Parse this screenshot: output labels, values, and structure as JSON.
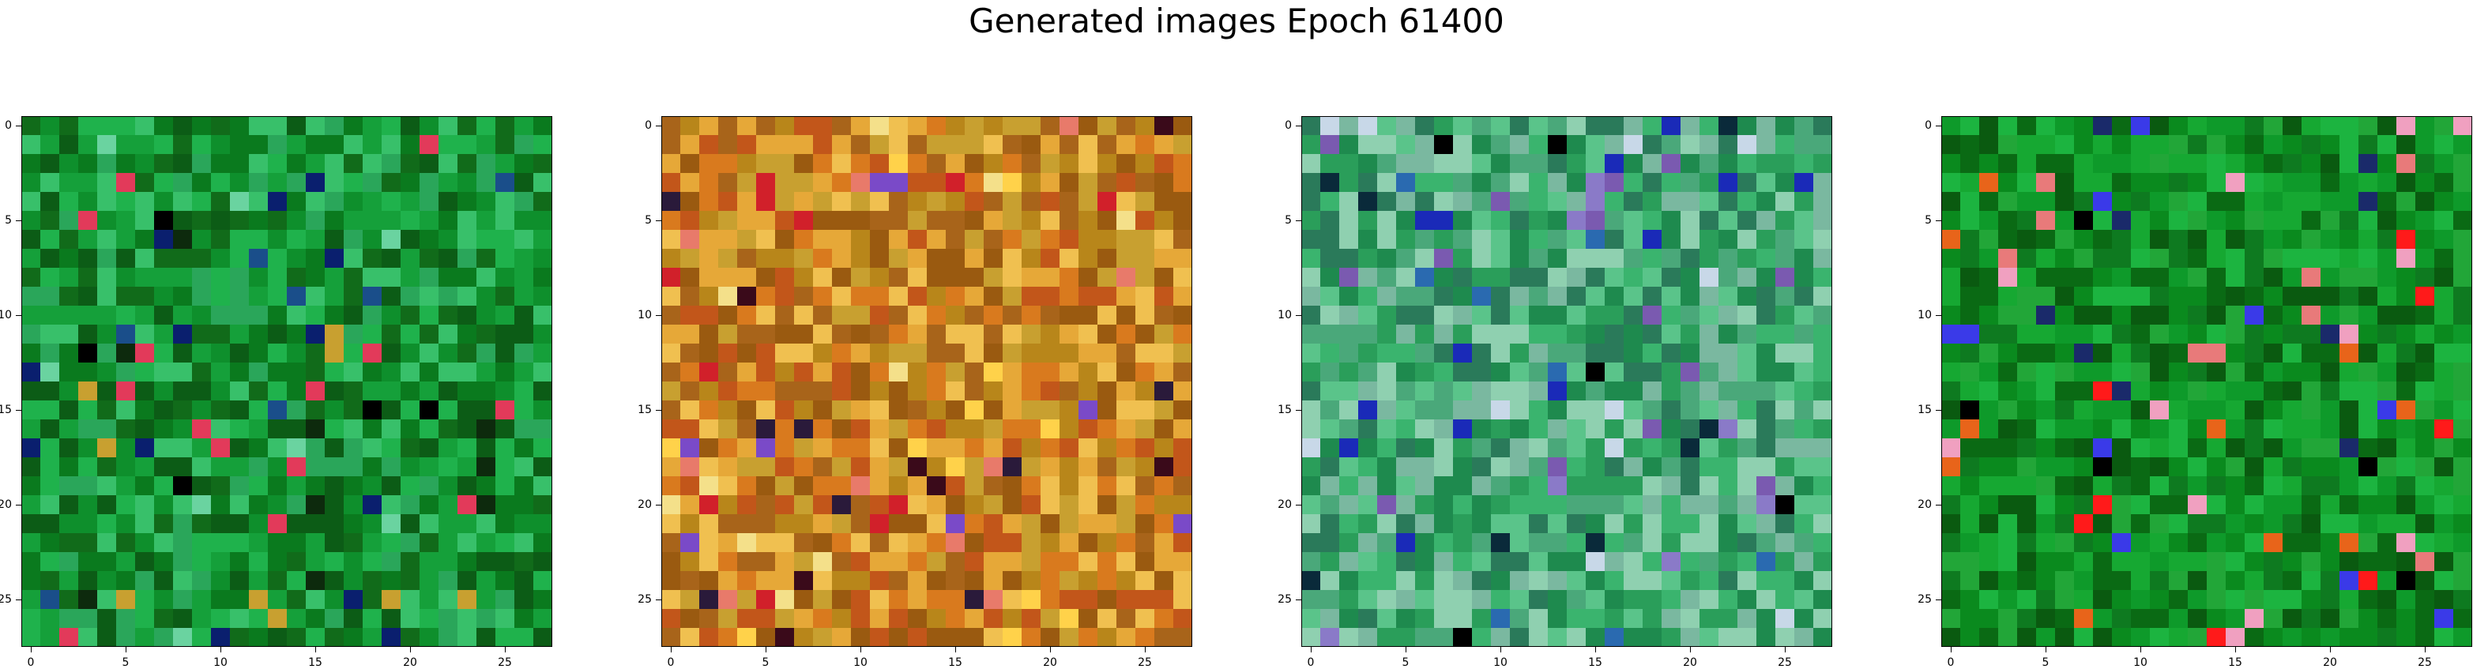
{
  "title": "Generated images Epoch 61400",
  "x_tick_labels": [
    "0",
    "5",
    "10",
    "15",
    "20",
    "25"
  ],
  "y_tick_labels": [
    "0",
    "5",
    "10",
    "15",
    "20",
    "25"
  ],
  "grid_size": 28,
  "panels": [
    {
      "name": "generated-image-1",
      "palette": "green",
      "base_colors": [
        "#0a7a1e",
        "#0e8f2c",
        "#116b1a",
        "#15a03a",
        "#1fb24c",
        "#0c5c16",
        "#2aa65a",
        "#38c06a"
      ],
      "accent_colors": [
        "#000000",
        "#0a1f6e",
        "#6ad3a0",
        "#e23a5a",
        "#c8a030",
        "#1a4e8a",
        "#0d2a0d"
      ]
    },
    {
      "name": "generated-image-2",
      "palette": "warm",
      "base_colors": [
        "#c2561a",
        "#d97a1e",
        "#b8861a",
        "#e6a838",
        "#a8641a",
        "#f0c050",
        "#c8a030",
        "#9a5a10"
      ],
      "accent_colors": [
        "#d1202a",
        "#3a0a1a",
        "#ffd24a",
        "#7a4ac8",
        "#e87a6a",
        "#2a1a3a",
        "#f4e08a"
      ]
    },
    {
      "name": "generated-image-3",
      "palette": "teal",
      "base_colors": [
        "#2a9e5a",
        "#3ab46e",
        "#1e8a4e",
        "#5ac48a",
        "#7ab8a0",
        "#8fd0b0",
        "#2a7a5a",
        "#4aa87a"
      ],
      "accent_colors": [
        "#1a2ab8",
        "#000000",
        "#7a5ab0",
        "#c8d8e8",
        "#2a6ab0",
        "#8a7ac8",
        "#0a2a3a"
      ]
    },
    {
      "name": "generated-image-4",
      "palette": "green",
      "base_colors": [
        "#0a8a1e",
        "#0e9a2a",
        "#0a6a14",
        "#16a832",
        "#1cb440",
        "#0a5a10",
        "#22a638",
        "#0e7a20"
      ],
      "accent_colors": [
        "#000000",
        "#e87a7a",
        "#ff1a1a",
        "#3a3ae8",
        "#f0a0c0",
        "#e8641a",
        "#1a2a6a"
      ]
    }
  ]
}
